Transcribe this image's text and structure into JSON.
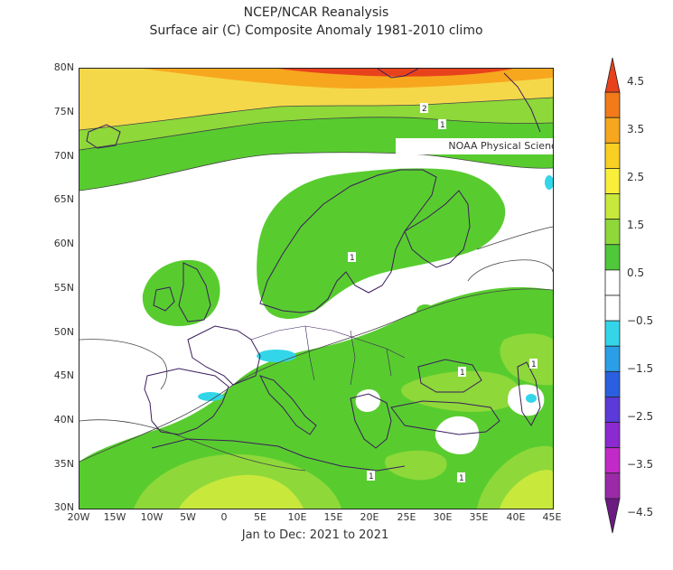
{
  "title_line1": "NCEP/NCAR Reanalysis",
  "title_line2": "Surface air (C) Composite Anomaly 1981-2010 climo",
  "credit": "NOAA Physical Sciences Laboratory",
  "footer": "Jan to Dec: 2021 to 2021",
  "lat_labels": [
    "80N",
    "75N",
    "70N",
    "65N",
    "60N",
    "55N",
    "50N",
    "45N",
    "40N",
    "35N",
    "30N"
  ],
  "lon_labels": [
    "20W",
    "15W",
    "10W",
    "5W",
    "0",
    "5E",
    "10E",
    "15E",
    "20E",
    "25E",
    "30E",
    "35E",
    "40E",
    "45E"
  ],
  "contour_labels": [
    "2",
    "1",
    "1",
    "1",
    "1",
    "1",
    "1"
  ],
  "colorbar": {
    "labels": [
      "4.5",
      "3.5",
      "2.5",
      "1.5",
      "0.5",
      "−0.5",
      "−1.5",
      "−2.5",
      "−3.5",
      "−4.5"
    ],
    "colors": [
      "#e8421c",
      "#f27a1a",
      "#f7a71e",
      "#f8cf22",
      "#f9ee3a",
      "#c8e83c",
      "#8ed83a",
      "#4fc93a",
      "#ffffff",
      "#ffffff",
      "#33d6e8",
      "#2a9fe8",
      "#2a5fe0",
      "#5a3ad8",
      "#8a2ad0",
      "#c22ac8",
      "#9a2aa8",
      "#6a1a80"
    ]
  },
  "region_colors": {
    "neutral": "#ffffff",
    "green": "#58cc2f",
    "lightgreen": "#8ed83a",
    "yellowgreen": "#c8e83c",
    "yellow": "#f5d84a",
    "orange": "#f7a71e",
    "cyan": "#33d6e8"
  }
}
